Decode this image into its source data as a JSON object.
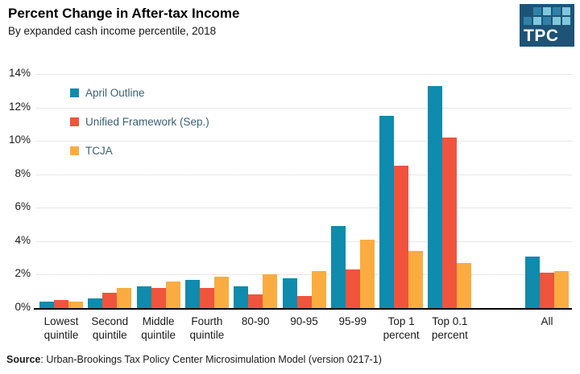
{
  "header": {
    "title": "Percent Change in After-tax Income",
    "subtitle": "By expanded cash income percentile, 2018"
  },
  "logo": {
    "text": "TPC",
    "bg_color": "#1d5377",
    "square_colors": {
      "1": "#2f81a6",
      "2": "#7ec8dc"
    },
    "grid": [
      [
        0,
        1,
        2,
        1,
        2
      ],
      [
        1,
        2,
        1,
        2,
        2
      ]
    ]
  },
  "footer": {
    "source_label": "Source",
    "source_text": ": Urban-Brookings Tax Policy Center Microsimulation Model (version 0217-1)"
  },
  "chart_data": {
    "type": "bar",
    "title": "Percent Change in After-tax Income",
    "subtitle": "By expanded cash income percentile, 2018",
    "xlabel": "",
    "ylabel": "",
    "ylim": [
      0,
      14
    ],
    "ytick_step": 2,
    "ytick_suffix": "%",
    "grid": "horizontal-dotted",
    "legend_position": "upper-left-inside",
    "categories": [
      "Lowest quintile",
      "Second quintile",
      "Middle quintile",
      "Fourth quintile",
      "80-90",
      "90-95",
      "95-99",
      "Top 1 percent",
      "Top 0.1 percent",
      "All"
    ],
    "gap_after_index": 8,
    "series": [
      {
        "name": "April Outline",
        "color": "#0e8bad",
        "values": [
          0.4,
          0.6,
          1.3,
          1.7,
          1.3,
          1.8,
          4.9,
          11.5,
          13.3,
          3.1
        ]
      },
      {
        "name": "Unified Framework (Sep.)",
        "color": "#f0543d",
        "values": [
          0.5,
          0.9,
          1.2,
          1.2,
          0.8,
          0.7,
          2.3,
          8.5,
          10.2,
          2.1
        ]
      },
      {
        "name": "TCJA",
        "color": "#fbac41",
        "values": [
          0.4,
          1.2,
          1.6,
          1.9,
          2.0,
          2.2,
          4.1,
          3.4,
          2.7,
          2.2
        ]
      }
    ]
  }
}
